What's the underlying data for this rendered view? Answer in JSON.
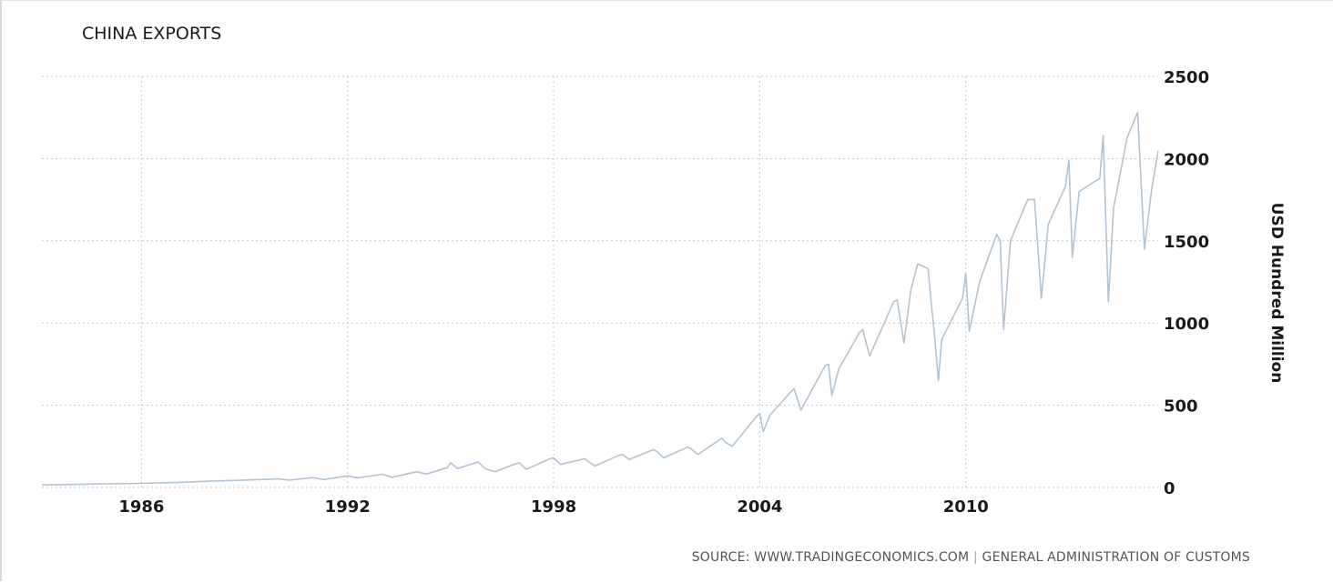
{
  "chart_data": {
    "type": "line",
    "title": "CHINA EXPORTS",
    "ylabel": "USD Hundred Million",
    "xlabel": "",
    "source_label": "SOURCE:",
    "source_site": "WWW.TRADINGECONOMICS.COM",
    "source_separator": "|",
    "source_org": "GENERAL ADMINISTRATION OF CUSTOMS",
    "xlim": [
      1983.1,
      2015.6
    ],
    "ylim": [
      0,
      2500
    ],
    "x_ticks": [
      1986,
      1992,
      1998,
      2004,
      2010
    ],
    "y_ticks": [
      0,
      500,
      1000,
      1500,
      2000,
      2500
    ],
    "grid": true,
    "y_axis_side": "right",
    "line_color": "#b3c3d1",
    "series": [
      {
        "points": [
          [
            1983.1,
            15
          ],
          [
            1984.0,
            18
          ],
          [
            1985.0,
            22
          ],
          [
            1986.0,
            25
          ],
          [
            1987.0,
            30
          ],
          [
            1988.0,
            38
          ],
          [
            1989.0,
            45
          ],
          [
            1990.0,
            52
          ],
          [
            1990.3,
            44
          ],
          [
            1991.0,
            60
          ],
          [
            1991.3,
            48
          ],
          [
            1992.0,
            70
          ],
          [
            1992.3,
            58
          ],
          [
            1993.0,
            80
          ],
          [
            1993.3,
            62
          ],
          [
            1994.0,
            95
          ],
          [
            1994.3,
            82
          ],
          [
            1994.9,
            120
          ],
          [
            1995.0,
            150
          ],
          [
            1995.2,
            115
          ],
          [
            1995.8,
            155
          ],
          [
            1996.0,
            115
          ],
          [
            1996.3,
            95
          ],
          [
            1996.9,
            145
          ],
          [
            1997.0,
            150
          ],
          [
            1997.2,
            110
          ],
          [
            1997.9,
            175
          ],
          [
            1998.0,
            180
          ],
          [
            1998.2,
            140
          ],
          [
            1998.9,
            175
          ],
          [
            1999.0,
            160
          ],
          [
            1999.2,
            130
          ],
          [
            1999.9,
            195
          ],
          [
            2000.0,
            200
          ],
          [
            2000.2,
            170
          ],
          [
            2000.9,
            230
          ],
          [
            2001.0,
            220
          ],
          [
            2001.2,
            180
          ],
          [
            2001.9,
            245
          ],
          [
            2002.0,
            235
          ],
          [
            2002.2,
            200
          ],
          [
            2002.9,
            300
          ],
          [
            2003.0,
            275
          ],
          [
            2003.2,
            250
          ],
          [
            2003.9,
            430
          ],
          [
            2004.0,
            450
          ],
          [
            2004.1,
            340
          ],
          [
            2004.3,
            440
          ],
          [
            2004.9,
            580
          ],
          [
            2005.0,
            600
          ],
          [
            2005.2,
            470
          ],
          [
            2005.9,
            740
          ],
          [
            2006.0,
            750
          ],
          [
            2006.1,
            560
          ],
          [
            2006.3,
            720
          ],
          [
            2006.9,
            940
          ],
          [
            2007.0,
            960
          ],
          [
            2007.2,
            800
          ],
          [
            2007.9,
            1130
          ],
          [
            2008.0,
            1140
          ],
          [
            2008.2,
            880
          ],
          [
            2008.4,
            1200
          ],
          [
            2008.6,
            1360
          ],
          [
            2008.9,
            1330
          ],
          [
            2009.0,
            1110
          ],
          [
            2009.1,
            900
          ],
          [
            2009.2,
            650
          ],
          [
            2009.3,
            900
          ],
          [
            2009.9,
            1150
          ],
          [
            2010.0,
            1300
          ],
          [
            2010.1,
            950
          ],
          [
            2010.4,
            1250
          ],
          [
            2010.9,
            1540
          ],
          [
            2011.0,
            1500
          ],
          [
            2011.1,
            960
          ],
          [
            2011.3,
            1500
          ],
          [
            2011.8,
            1750
          ],
          [
            2012.0,
            1750
          ],
          [
            2012.2,
            1150
          ],
          [
            2012.4,
            1600
          ],
          [
            2012.9,
            1830
          ],
          [
            2013.0,
            1990
          ],
          [
            2013.1,
            1400
          ],
          [
            2013.3,
            1800
          ],
          [
            2013.9,
            1880
          ],
          [
            2014.0,
            2140
          ],
          [
            2014.15,
            1130
          ],
          [
            2014.3,
            1700
          ],
          [
            2014.7,
            2130
          ],
          [
            2015.0,
            2280
          ],
          [
            2015.2,
            1450
          ],
          [
            2015.4,
            1800
          ],
          [
            2015.6,
            2050
          ]
        ]
      }
    ]
  }
}
